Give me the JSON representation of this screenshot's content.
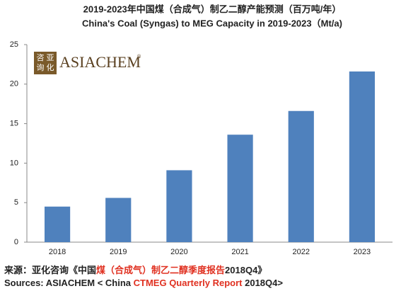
{
  "chart_data": {
    "type": "bar",
    "title": "2019-2023年中国煤（合成气）制乙二醇产能预测（百万吨/年）",
    "subtitle": "China's Coal (Syngas) to MEG Capacity in 2019-2023（Mt/a)",
    "categories": [
      "2018",
      "2019",
      "2020",
      "2021",
      "2022",
      "2023"
    ],
    "values": [
      4.5,
      5.6,
      9.1,
      13.6,
      16.6,
      21.6
    ],
    "color": "#4f81bd",
    "ylim": [
      0,
      25
    ],
    "yticks": [
      0,
      5,
      10,
      15,
      20,
      25
    ],
    "grid": false
  },
  "logo": {
    "stamp": [
      "咨",
      "亚",
      "询",
      "化"
    ],
    "name": "ASIACHEM",
    "mark": "®"
  },
  "source": {
    "zh": [
      "来源：亚化咨询《中国",
      "煤（合成气）制乙二醇季度报告",
      "2018Q4》"
    ],
    "en": [
      "Sources: ASIACHEM < China ",
      "CTMEG Quarterly Report",
      " 2018Q4>"
    ]
  }
}
